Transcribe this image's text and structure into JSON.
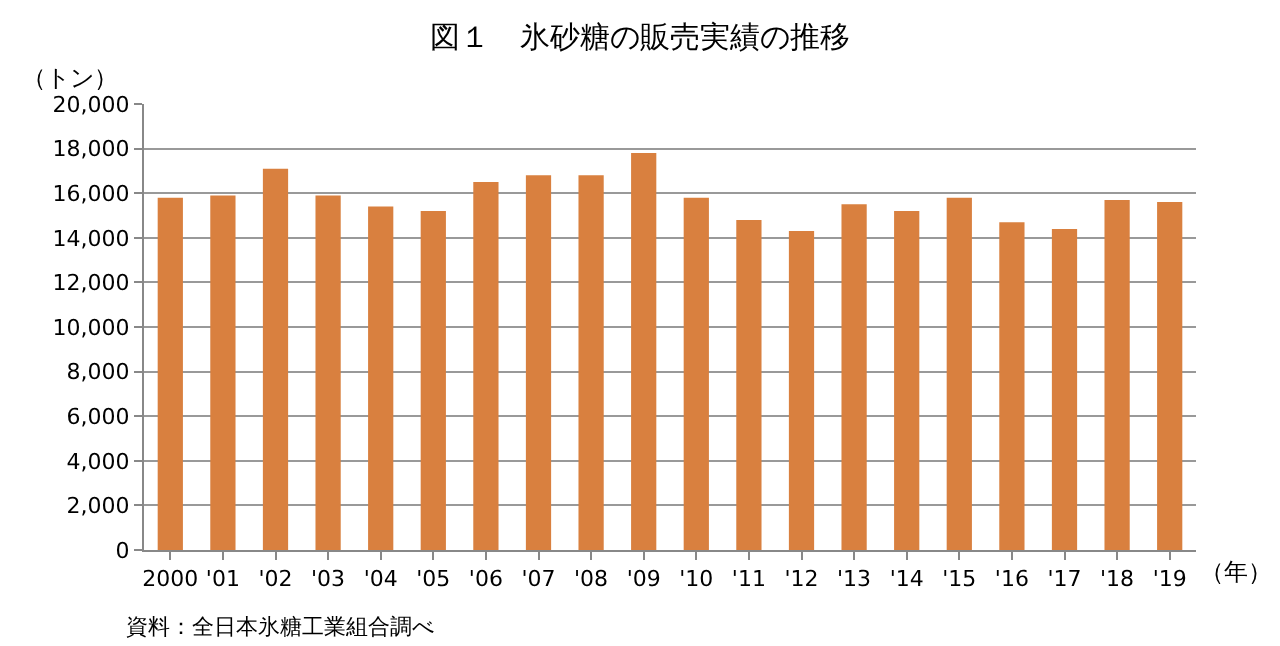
{
  "chart_data": {
    "type": "bar",
    "title": "図１　氷砂糖の販売実績の推移",
    "ylabel": "（トン）",
    "xlabel": "（年）",
    "categories": [
      "2000",
      "'01",
      "'02",
      "'03",
      "'04",
      "'05",
      "'06",
      "'07",
      "'08",
      "'09",
      "'10",
      "'11",
      "'12",
      "'13",
      "'14",
      "'15",
      "'16",
      "'17",
      "'18",
      "'19"
    ],
    "values": [
      15800,
      15900,
      17100,
      15900,
      15400,
      15200,
      16500,
      16800,
      16800,
      17800,
      15800,
      14800,
      14300,
      15500,
      15200,
      15800,
      14700,
      14400,
      15700,
      15600
    ],
    "color": "#d9803f",
    "ylim": [
      0,
      20000
    ],
    "yticks": [
      {
        "value": 0,
        "label": "0"
      },
      {
        "value": 2000,
        "label": "2,000"
      },
      {
        "value": 4000,
        "label": "4,000"
      },
      {
        "value": 6000,
        "label": "6,000"
      },
      {
        "value": 8000,
        "label": "8,000"
      },
      {
        "value": 10000,
        "label": "10,000"
      },
      {
        "value": 12000,
        "label": "12,000"
      },
      {
        "value": 14000,
        "label": "14,000"
      },
      {
        "value": 16000,
        "label": "16,000"
      },
      {
        "value": 18000,
        "label": "18,000"
      },
      {
        "value": 20000,
        "label": "20,000"
      }
    ],
    "grid": "y",
    "annotations": [
      "資料：全日本氷糖工業組合調べ"
    ]
  }
}
